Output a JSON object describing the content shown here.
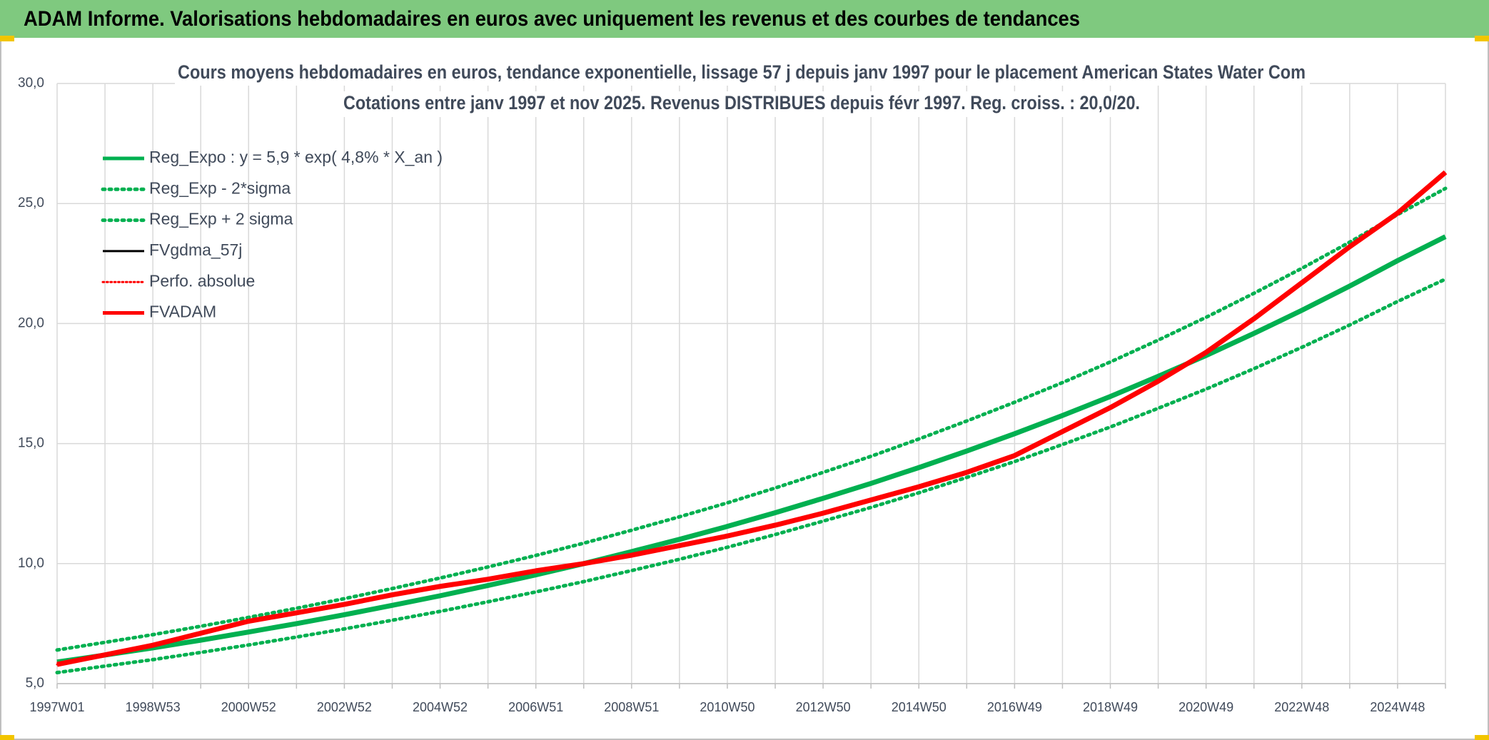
{
  "header": {
    "title": "ADAM Informe. Valorisations hebdomadaires en euros avec uniquement les revenus et des courbes de tendances"
  },
  "chart_data": {
    "type": "line",
    "title": "Cours moyens hebdomadaires en euros, tendance exponentielle, lissage 57 j depuis janv 1997 pour le placement American States Water Com",
    "subtitle": "Cotations entre janv 1997 et nov 2025. Revenus DISTRIBUES depuis févr 1997. Reg. croiss. : 20,0/20.",
    "categories": [
      "1997W01",
      null,
      "1998W53",
      null,
      "2000W52",
      null,
      "2002W52",
      null,
      "2004W52",
      null,
      "2006W51",
      null,
      "2008W51",
      null,
      "2010W50",
      null,
      "2012W50",
      null,
      "2014W50",
      null,
      "2016W49",
      null,
      "2018W49",
      null,
      "2020W49",
      null,
      "2022W48",
      null,
      "2024W48",
      null
    ],
    "ylim": [
      5,
      30
    ],
    "yticks": [
      {
        "value": 5,
        "label": "5,0"
      },
      {
        "value": 10,
        "label": "10,0"
      },
      {
        "value": 15,
        "label": "15,0"
      },
      {
        "value": 20,
        "label": "20,0"
      },
      {
        "value": 25,
        "label": "25,0"
      },
      {
        "value": 30,
        "label": "30,0"
      }
    ],
    "grid": true,
    "legend": "upper left",
    "series": [
      {
        "name": "Reg_Expo : y = 5,9 * exp( 4,8% *  X_an )",
        "color": "#00b050",
        "style": "solid",
        "values": [
          5.9,
          6.19,
          6.49,
          6.81,
          7.15,
          7.5,
          7.87,
          8.26,
          8.66,
          9.09,
          9.53,
          10.0,
          10.5,
          11.01,
          11.55,
          12.12,
          12.72,
          13.34,
          14.0,
          14.69,
          15.41,
          16.17,
          16.96,
          17.8,
          18.67,
          19.59,
          20.55,
          21.56,
          22.62,
          23.62
        ]
      },
      {
        "name": "Reg_Exp - 2*sigma",
        "color": "#00b050",
        "style": "dotted",
        "values": [
          5.46,
          5.73,
          6.0,
          6.3,
          6.61,
          6.94,
          7.28,
          7.64,
          8.01,
          8.41,
          8.82,
          9.25,
          9.71,
          10.18,
          10.68,
          11.21,
          11.77,
          12.34,
          12.95,
          13.59,
          14.25,
          14.96,
          15.69,
          16.47,
          17.27,
          18.12,
          19.01,
          19.94,
          20.92,
          21.85
        ]
      },
      {
        "name": "Reg_Exp + 2 sigma",
        "color": "#00b050",
        "style": "dotted",
        "values": [
          6.4,
          6.72,
          7.04,
          7.39,
          7.76,
          8.14,
          8.54,
          8.96,
          9.4,
          9.86,
          10.34,
          10.85,
          11.39,
          11.95,
          12.53,
          13.15,
          13.8,
          14.47,
          15.19,
          15.94,
          16.72,
          17.54,
          18.4,
          19.31,
          20.26,
          21.26,
          22.3,
          23.39,
          24.54,
          25.63
        ]
      },
      {
        "name": "FVgdma_57j",
        "color": "#000000",
        "style": "solid",
        "values": [
          5.8,
          6.2,
          6.6,
          7.1,
          7.6,
          7.95,
          8.3,
          8.7,
          9.05,
          9.35,
          9.7,
          10.0,
          10.35,
          10.75,
          11.15,
          11.6,
          12.1,
          12.65,
          13.2,
          13.8,
          14.5,
          15.5,
          16.5,
          17.6,
          18.8,
          20.2,
          21.7,
          23.2,
          24.6,
          26.3
        ]
      },
      {
        "name": "Perfo. absolue",
        "color": "#ff0000",
        "style": "dotted",
        "values": [
          5.8,
          6.2,
          6.6,
          7.1,
          7.6,
          7.95,
          8.3,
          8.7,
          9.05,
          9.35,
          9.7,
          10.0,
          10.35,
          10.75,
          11.15,
          11.6,
          12.1,
          12.65,
          13.2,
          13.8,
          14.5,
          15.5,
          16.5,
          17.6,
          18.8,
          20.2,
          21.7,
          23.2,
          24.6,
          26.3
        ]
      },
      {
        "name": "FVADAM",
        "color": "#ff0000",
        "style": "solid",
        "values": [
          5.8,
          6.2,
          6.6,
          7.1,
          7.6,
          7.95,
          8.3,
          8.7,
          9.05,
          9.35,
          9.7,
          10.0,
          10.35,
          10.75,
          11.15,
          11.6,
          12.1,
          12.65,
          13.2,
          13.8,
          14.5,
          15.5,
          16.5,
          17.6,
          18.8,
          20.2,
          21.7,
          23.2,
          24.6,
          26.3
        ]
      }
    ]
  }
}
